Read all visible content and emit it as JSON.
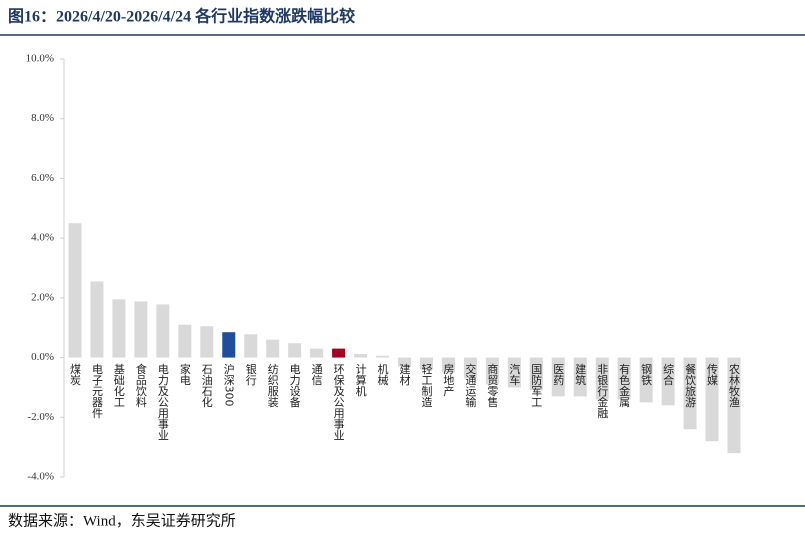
{
  "chart_data": {
    "type": "bar",
    "title": "图16：2026/4/20-2026/4/24 各行业指数涨跌幅比较",
    "source": "数据来源：Wind，东吴证券研究所",
    "categories": [
      "煤炭",
      "电子元器件",
      "基础化工",
      "食品饮料",
      "电力及公用事业",
      "家电",
      "石油石化",
      "沪深300",
      "银行",
      "纺织服装",
      "电力设备",
      "通信",
      "环保及公用事业",
      "计算机",
      "机械",
      "建材",
      "轻工制造",
      "房地产",
      "交通运输",
      "商贸零售",
      "汽车",
      "国防军工",
      "医药",
      "建筑",
      "非银行金融",
      "有色金属",
      "钢铁",
      "综合",
      "餐饮旅游",
      "传媒",
      "农林牧渔"
    ],
    "values": [
      4.5,
      2.55,
      1.95,
      1.88,
      1.78,
      1.1,
      1.05,
      0.85,
      0.78,
      0.6,
      0.48,
      0.3,
      0.3,
      0.12,
      0.06,
      -0.3,
      -0.4,
      -0.5,
      -0.7,
      -0.9,
      -1.0,
      -1.1,
      -1.3,
      -1.3,
      -1.4,
      -1.4,
      -1.5,
      -1.6,
      -2.4,
      -2.8,
      -3.2
    ],
    "colors": [
      "#d9d9d9",
      "#d9d9d9",
      "#d9d9d9",
      "#d9d9d9",
      "#d9d9d9",
      "#d9d9d9",
      "#d9d9d9",
      "#1f4e9c",
      "#d9d9d9",
      "#d9d9d9",
      "#d9d9d9",
      "#d9d9d9",
      "#a50021",
      "#d9d9d9",
      "#d9d9d9",
      "#d9d9d9",
      "#d9d9d9",
      "#d9d9d9",
      "#d9d9d9",
      "#d9d9d9",
      "#d9d9d9",
      "#d9d9d9",
      "#d9d9d9",
      "#d9d9d9",
      "#d9d9d9",
      "#d9d9d9",
      "#d9d9d9",
      "#d9d9d9",
      "#d9d9d9",
      "#d9d9d9",
      "#d9d9d9"
    ],
    "ylim": [
      -4,
      10
    ],
    "yticks": [
      {
        "value": -4,
        "label": "-4.0%"
      },
      {
        "value": -2,
        "label": "-2.0%"
      },
      {
        "value": 0,
        "label": "0.0%"
      },
      {
        "value": 2,
        "label": "2.0%"
      },
      {
        "value": 4,
        "label": "4.0%"
      },
      {
        "value": 6,
        "label": "6.0%"
      },
      {
        "value": 8,
        "label": "8.0%"
      },
      {
        "value": 10,
        "label": "10.0%"
      }
    ],
    "grid": false
  }
}
